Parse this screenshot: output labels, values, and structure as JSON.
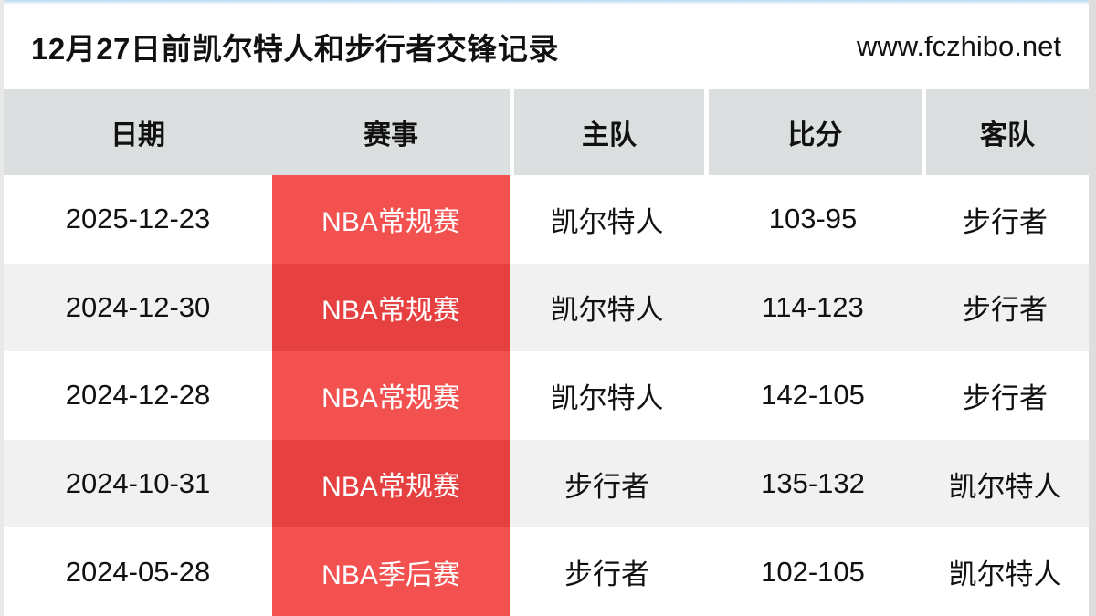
{
  "title_bar": {
    "title": "12月27日前凯尔特人和步行者交锋记录",
    "website": "www.fczhibo.net"
  },
  "table": {
    "columns": [
      "日期",
      "赛事",
      "主队",
      "比分",
      "客队"
    ],
    "rows": [
      {
        "date": "2025-12-23",
        "event": "NBA常规赛",
        "home": "凯尔特人",
        "score": "103-95",
        "away": "步行者"
      },
      {
        "date": "2024-12-30",
        "event": "NBA常规赛",
        "home": "凯尔特人",
        "score": "114-123",
        "away": "步行者"
      },
      {
        "date": "2024-12-28",
        "event": "NBA常规赛",
        "home": "凯尔特人",
        "score": "142-105",
        "away": "步行者"
      },
      {
        "date": "2024-10-31",
        "event": "NBA常规赛",
        "home": "步行者",
        "score": "135-132",
        "away": "凯尔特人"
      },
      {
        "date": "2024-05-28",
        "event": "NBA季后赛",
        "home": "步行者",
        "score": "102-105",
        "away": "凯尔特人"
      }
    ]
  },
  "colors": {
    "event_red_light": "#f3514f",
    "event_red_dark": "#e64040",
    "header_gray": "#dcdfe0",
    "row_alt_gray": "#f1f1f2",
    "text_black": "#111111",
    "top_edge_blue": "#b9d8ef"
  }
}
